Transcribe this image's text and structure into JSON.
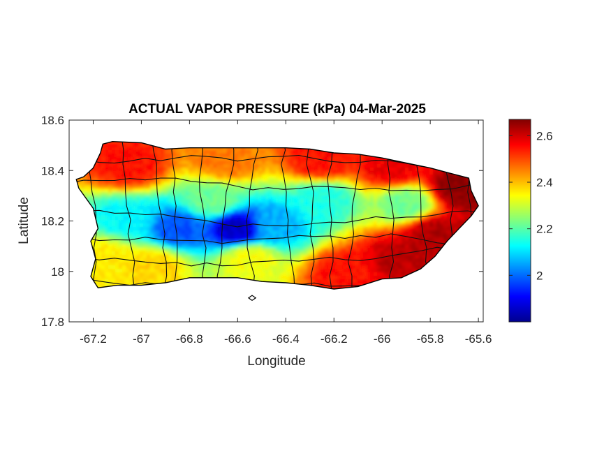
{
  "chart_data": {
    "type": "heatmap",
    "title": "ACTUAL VAPOR PRESSURE (kPa) 04-Mar-2025",
    "xlabel": "Longitude",
    "ylabel": "Latitude",
    "xlim": [
      -67.3,
      -65.58
    ],
    "ylim": [
      17.8,
      18.6
    ],
    "x_ticks": [
      -67.2,
      -67,
      -66.8,
      -66.6,
      -66.4,
      -66.2,
      -66,
      -65.8,
      -65.6
    ],
    "x_tick_labels": [
      "-67.2",
      "-67",
      "-66.8",
      "-66.6",
      "-66.4",
      "-66.2",
      "-66",
      "-65.8",
      "-65.6"
    ],
    "y_ticks": [
      17.8,
      18,
      18.2,
      18.4,
      18.6
    ],
    "y_tick_labels": [
      "17.8",
      "18",
      "18.2",
      "18.4",
      "18.6"
    ],
    "colorbar": {
      "colormap": "jet",
      "range": [
        1.8,
        2.67
      ],
      "ticks": [
        2,
        2.2,
        2.4,
        2.6
      ],
      "tick_labels": [
        "2",
        "2.2",
        "2.4",
        "2.6"
      ]
    },
    "island_outline": [
      [
        -67.27,
        18.365
      ],
      [
        -67.24,
        18.375
      ],
      [
        -67.2,
        18.41
      ],
      [
        -67.17,
        18.47
      ],
      [
        -67.16,
        18.505
      ],
      [
        -67.12,
        18.515
      ],
      [
        -67.0,
        18.51
      ],
      [
        -66.9,
        18.485
      ],
      [
        -66.8,
        18.49
      ],
      [
        -66.7,
        18.49
      ],
      [
        -66.6,
        18.49
      ],
      [
        -66.5,
        18.49
      ],
      [
        -66.4,
        18.49
      ],
      [
        -66.3,
        18.485
      ],
      [
        -66.2,
        18.47
      ],
      [
        -66.1,
        18.465
      ],
      [
        -66.0,
        18.45
      ],
      [
        -65.9,
        18.43
      ],
      [
        -65.8,
        18.41
      ],
      [
        -65.72,
        18.39
      ],
      [
        -65.64,
        18.37
      ],
      [
        -65.63,
        18.32
      ],
      [
        -65.6,
        18.26
      ],
      [
        -65.63,
        18.22
      ],
      [
        -65.68,
        18.17
      ],
      [
        -65.73,
        18.12
      ],
      [
        -65.78,
        18.06
      ],
      [
        -65.84,
        18.01
      ],
      [
        -65.92,
        17.975
      ],
      [
        -66.0,
        17.97
      ],
      [
        -66.1,
        17.94
      ],
      [
        -66.2,
        17.93
      ],
      [
        -66.3,
        17.945
      ],
      [
        -66.4,
        17.955
      ],
      [
        -66.5,
        17.96
      ],
      [
        -66.6,
        17.975
      ],
      [
        -66.7,
        17.975
      ],
      [
        -66.8,
        17.975
      ],
      [
        -66.9,
        17.955
      ],
      [
        -67.0,
        17.945
      ],
      [
        -67.1,
        17.945
      ],
      [
        -67.18,
        17.935
      ],
      [
        -67.21,
        17.98
      ],
      [
        -67.19,
        18.05
      ],
      [
        -67.21,
        18.12
      ],
      [
        -67.18,
        18.17
      ],
      [
        -67.2,
        18.25
      ],
      [
        -67.26,
        18.33
      ]
    ],
    "islet_outline": [
      [
        -66.555,
        17.895
      ],
      [
        -66.54,
        17.905
      ],
      [
        -66.525,
        17.895
      ],
      [
        -66.54,
        17.885
      ]
    ],
    "value_field": [
      {
        "lon": -66.6,
        "lat": 18.17,
        "value": 1.86
      },
      {
        "lon": -66.85,
        "lat": 18.17,
        "value": 1.98
      },
      {
        "lon": -66.45,
        "lat": 18.18,
        "value": 2.06
      },
      {
        "lon": -67.05,
        "lat": 18.21,
        "value": 2.12
      },
      {
        "lon": -66.25,
        "lat": 18.28,
        "value": 2.15
      },
      {
        "lon": -65.9,
        "lat": 18.27,
        "value": 2.22
      },
      {
        "lon": -66.7,
        "lat": 18.28,
        "value": 2.22
      },
      {
        "lon": -66.55,
        "lat": 18.05,
        "value": 2.34
      },
      {
        "lon": -67.15,
        "lat": 18.05,
        "value": 2.36
      },
      {
        "lon": -66.95,
        "lat": 18.02,
        "value": 2.38
      },
      {
        "lon": -67.05,
        "lat": 18.42,
        "value": 2.55
      },
      {
        "lon": -66.65,
        "lat": 18.44,
        "value": 2.46
      },
      {
        "lon": -66.25,
        "lat": 18.44,
        "value": 2.55
      },
      {
        "lon": -65.95,
        "lat": 18.41,
        "value": 2.58
      },
      {
        "lon": -65.68,
        "lat": 18.33,
        "value": 2.66
      },
      {
        "lon": -65.78,
        "lat": 18.15,
        "value": 2.63
      },
      {
        "lon": -65.92,
        "lat": 18.05,
        "value": 2.62
      },
      {
        "lon": -66.15,
        "lat": 17.99,
        "value": 2.55
      }
    ]
  }
}
